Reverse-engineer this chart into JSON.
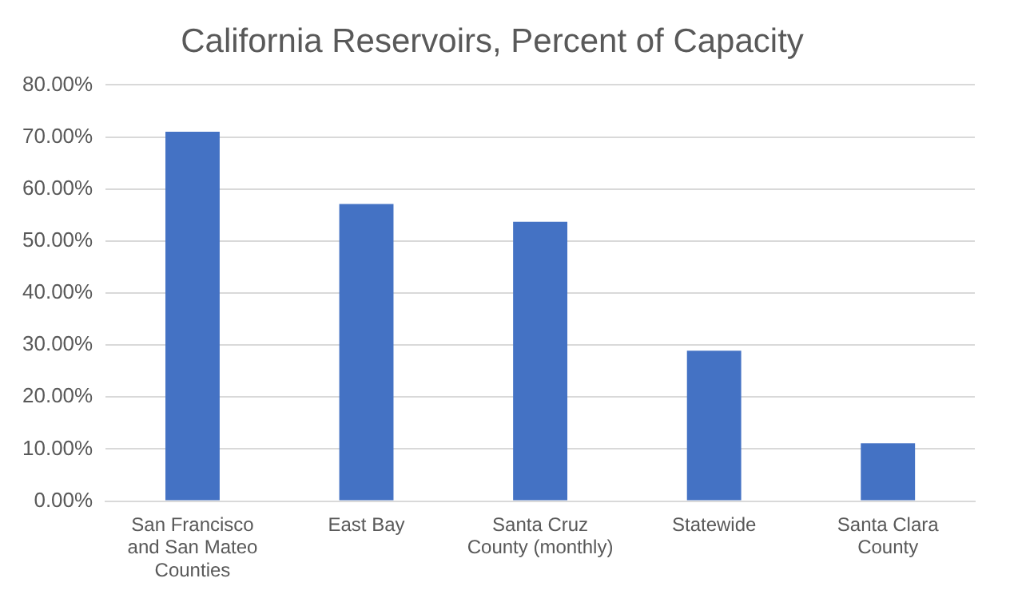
{
  "chart_data": {
    "type": "bar",
    "title": "California Reservoirs, Percent of Capacity",
    "categories": [
      "San Francisco and San Mateo Counties",
      "East Bay",
      "Santa Cruz County (monthly)",
      "Statewide",
      "Santa Clara County"
    ],
    "values": [
      71.0,
      57.1,
      53.7,
      28.9,
      11.1
    ],
    "color": "#4472c4",
    "ylim": [
      0,
      80
    ],
    "yticks": [
      {
        "value": 0,
        "label": "0.00%"
      },
      {
        "value": 10,
        "label": "10.00%"
      },
      {
        "value": 20,
        "label": "20.00%"
      },
      {
        "value": 30,
        "label": "30.00%"
      },
      {
        "value": 40,
        "label": "40.00%"
      },
      {
        "value": 50,
        "label": "50.00%"
      },
      {
        "value": 60,
        "label": "60.00%"
      },
      {
        "value": 70,
        "label": "70.00%"
      },
      {
        "value": 80,
        "label": "80.00%"
      }
    ],
    "grid": "y",
    "legend": false
  }
}
